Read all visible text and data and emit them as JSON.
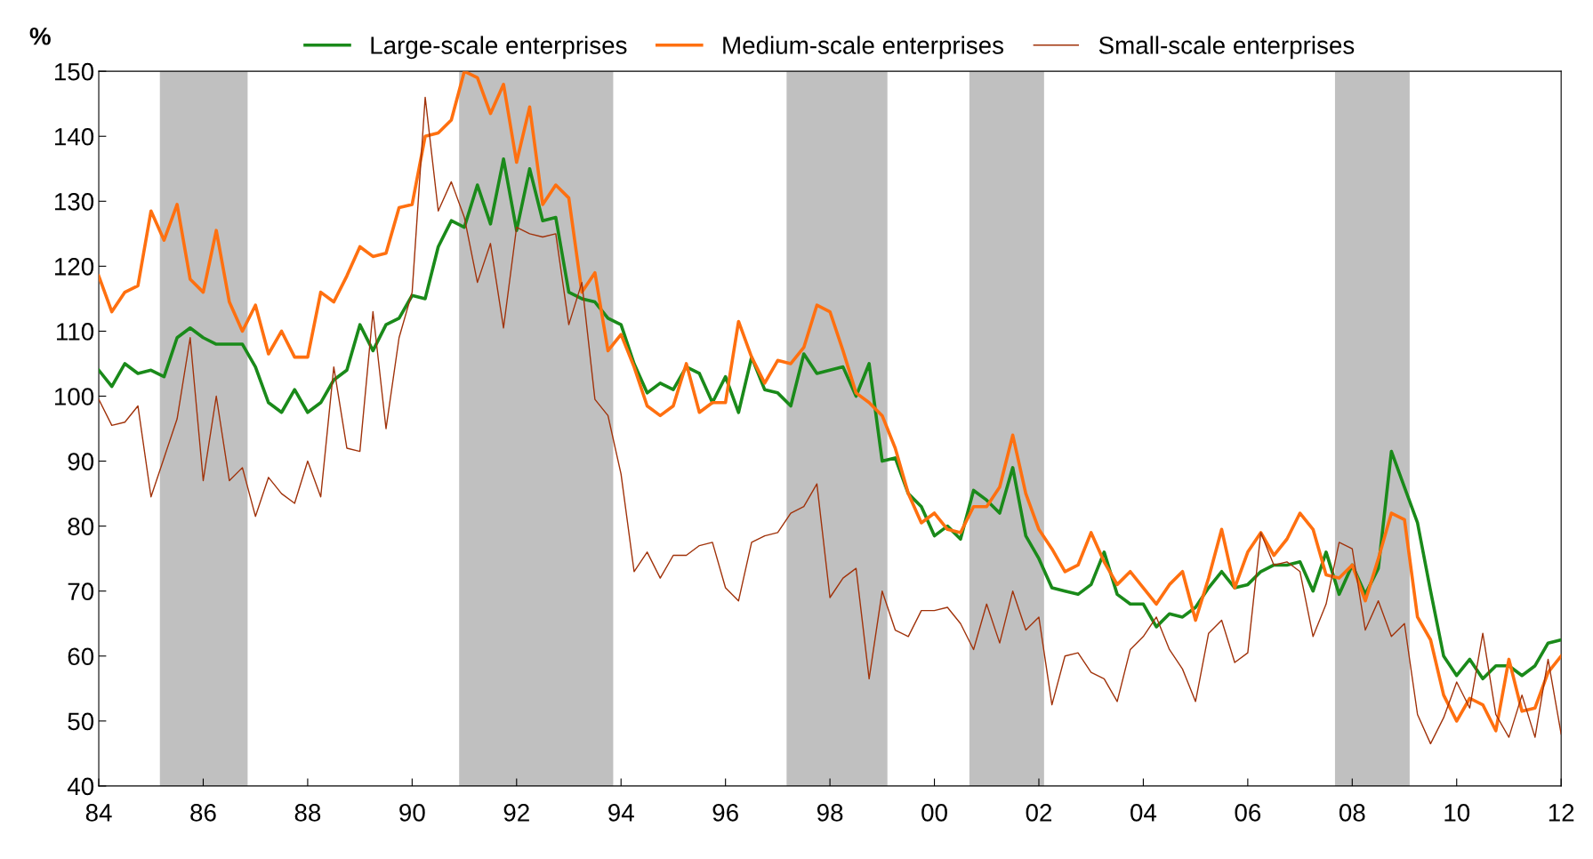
{
  "chart_data": {
    "type": "line",
    "ylabel": "%",
    "x": [
      1984,
      1984.25,
      1984.5,
      1984.75,
      1985,
      1985.25,
      1985.5,
      1985.75,
      1986,
      1986.25,
      1986.5,
      1986.75,
      1987,
      1987.25,
      1987.5,
      1987.75,
      1988,
      1988.25,
      1988.5,
      1988.75,
      1989,
      1989.25,
      1989.5,
      1989.75,
      1990,
      1990.25,
      1990.5,
      1990.75,
      1991,
      1991.25,
      1991.5,
      1991.75,
      1992,
      1992.25,
      1992.5,
      1992.75,
      1993,
      1993.25,
      1993.5,
      1993.75,
      1994,
      1994.25,
      1994.5,
      1994.75,
      1995,
      1995.25,
      1995.5,
      1995.75,
      1996,
      1996.25,
      1996.5,
      1996.75,
      1997,
      1997.25,
      1997.5,
      1997.75,
      1998,
      1998.25,
      1998.5,
      1998.75,
      1999,
      1999.25,
      1999.5,
      1999.75,
      2000,
      2000.25,
      2000.5,
      2000.75,
      2001,
      2001.25,
      2001.5,
      2001.75,
      2002,
      2002.25,
      2002.5,
      2002.75,
      2003,
      2003.25,
      2003.5,
      2003.75,
      2004,
      2004.25,
      2004.5,
      2004.75,
      2005,
      2005.25,
      2005.5,
      2005.75,
      2006,
      2006.25,
      2006.5,
      2006.75,
      2007,
      2007.25,
      2007.5,
      2007.75,
      2008,
      2008.25,
      2008.5,
      2008.75,
      2009,
      2009.25,
      2009.5,
      2009.75,
      2010,
      2010.25,
      2010.5,
      2010.75,
      2011,
      2011.25,
      2011.5,
      2011.75,
      2012
    ],
    "series": [
      {
        "name": "Large-scale enterprises",
        "color": "#1a8a1a",
        "values": [
          104,
          101.5,
          105,
          103.5,
          104,
          103,
          109,
          110.5,
          109,
          108,
          108,
          108,
          104.5,
          99,
          97.5,
          101,
          97.5,
          99,
          102.5,
          104,
          111,
          107,
          111,
          112,
          115.5,
          115,
          123,
          127,
          126,
          132.5,
          126.5,
          136.5,
          125.5,
          135,
          127,
          127.5,
          116,
          115,
          114.5,
          112,
          111,
          105,
          100.5,
          102,
          101,
          104.5,
          103.5,
          99,
          103,
          97.5,
          106,
          101,
          100.5,
          98.5,
          106.5,
          103.5,
          104,
          104.5,
          100,
          105,
          90,
          90.5,
          85,
          83,
          78.5,
          80,
          78,
          85.5,
          84,
          82,
          89,
          78.5,
          75,
          70.5,
          70,
          69.5,
          71,
          76,
          69.5,
          68,
          68,
          64.5,
          66.5,
          66,
          67.5,
          70.5,
          73,
          70.5,
          71,
          73,
          74,
          74,
          74.5,
          70,
          76,
          69.5,
          74,
          69.5,
          73.5,
          91.5,
          86,
          80.5,
          70,
          60,
          57,
          59.5,
          56.5,
          58.5,
          58.5,
          57,
          58.5,
          62,
          62.5
        ]
      },
      {
        "name": "Medium-scale enterprises",
        "color": "#ff7010",
        "values": [
          118.5,
          113,
          116,
          117,
          128.5,
          124,
          129.5,
          118,
          116,
          125.5,
          114.5,
          110,
          114,
          106.5,
          110,
          106,
          106,
          116,
          114.5,
          118.5,
          123,
          121.5,
          122,
          129,
          129.5,
          140,
          140.5,
          142.5,
          150,
          149,
          143.5,
          148,
          136,
          144.5,
          129.5,
          132.5,
          130.5,
          116,
          119,
          107,
          109.5,
          104.5,
          98.5,
          97,
          98.5,
          105,
          97.5,
          99,
          99,
          111.5,
          106,
          102,
          105.5,
          105,
          107.5,
          114,
          113,
          107,
          100.5,
          99,
          97,
          92,
          85,
          80.5,
          82,
          79.5,
          79,
          83,
          83,
          86,
          94,
          85,
          79.5,
          76.5,
          73,
          74,
          79,
          74.5,
          71,
          73,
          70.5,
          68,
          71,
          73,
          65.5,
          72,
          79.5,
          70.5,
          76,
          79,
          75.5,
          78,
          82,
          79.5,
          72.5,
          72,
          74,
          68.5,
          75,
          82,
          81,
          66,
          62.5,
          54,
          50,
          53.5,
          52.5,
          48.5,
          59.5,
          51.5,
          52,
          57.5,
          60
        ]
      },
      {
        "name": "Small-scale enterprises",
        "color": "#a0320a",
        "values": [
          99.5,
          95.5,
          96,
          98.5,
          84.5,
          90.5,
          96.5,
          109,
          87,
          100,
          87,
          89,
          81.5,
          87.5,
          85,
          83.5,
          90,
          84.5,
          104.5,
          92,
          91.5,
          113,
          95,
          109,
          116,
          146,
          128.5,
          133,
          127.5,
          117.5,
          123.5,
          110.5,
          126,
          125,
          124.5,
          125,
          111,
          117.5,
          99.5,
          97,
          88,
          73,
          76,
          72,
          75.5,
          75.5,
          77,
          77.5,
          70.5,
          68.5,
          77.5,
          78.5,
          79,
          82,
          83,
          86.5,
          69,
          72,
          73.5,
          56.5,
          70,
          64,
          63,
          67,
          67,
          67.5,
          65,
          61,
          68,
          62,
          70,
          64,
          66,
          52.5,
          60,
          60.5,
          57.5,
          56.5,
          53,
          61,
          63,
          66,
          61,
          58,
          53,
          63.5,
          65.5,
          59,
          60.5,
          79,
          74,
          74.5,
          73,
          63,
          68,
          77.5,
          76.5,
          64,
          68.5,
          63,
          65,
          51,
          46.5,
          50.5,
          56,
          52,
          63.5,
          51,
          47.5,
          54,
          47.5,
          59.5,
          48
        ]
      }
    ],
    "xlim": [
      1984,
      2012
    ],
    "xticks": [
      {
        "value": 1984,
        "label": "84"
      },
      {
        "value": 1986,
        "label": "86"
      },
      {
        "value": 1988,
        "label": "88"
      },
      {
        "value": 1990,
        "label": "90"
      },
      {
        "value": 1992,
        "label": "92"
      },
      {
        "value": 1994,
        "label": "94"
      },
      {
        "value": 1996,
        "label": "96"
      },
      {
        "value": 1998,
        "label": "98"
      },
      {
        "value": 2000,
        "label": "00"
      },
      {
        "value": 2002,
        "label": "02"
      },
      {
        "value": 2004,
        "label": "04"
      },
      {
        "value": 2006,
        "label": "06"
      },
      {
        "value": 2008,
        "label": "08"
      },
      {
        "value": 2010,
        "label": "10"
      },
      {
        "value": 2012,
        "label": "12"
      }
    ],
    "ylim": [
      40,
      150
    ],
    "yticks": [
      40,
      50,
      60,
      70,
      80,
      90,
      100,
      110,
      120,
      130,
      140,
      150
    ],
    "bands": [
      {
        "axis": "x",
        "from": 1985.17,
        "to": 1986.85,
        "color": "#c0c0c0"
      },
      {
        "axis": "x",
        "from": 1990.9,
        "to": 1993.85,
        "color": "#c0c0c0"
      },
      {
        "axis": "x",
        "from": 1997.17,
        "to": 1999.1,
        "color": "#c0c0c0"
      },
      {
        "axis": "x",
        "from": 2000.67,
        "to": 2002.1,
        "color": "#c0c0c0"
      },
      {
        "axis": "x",
        "from": 2007.67,
        "to": 2009.1,
        "color": "#c0c0c0"
      }
    ],
    "grid": false,
    "legend": "top",
    "marker": "none",
    "line_style": "solid"
  }
}
